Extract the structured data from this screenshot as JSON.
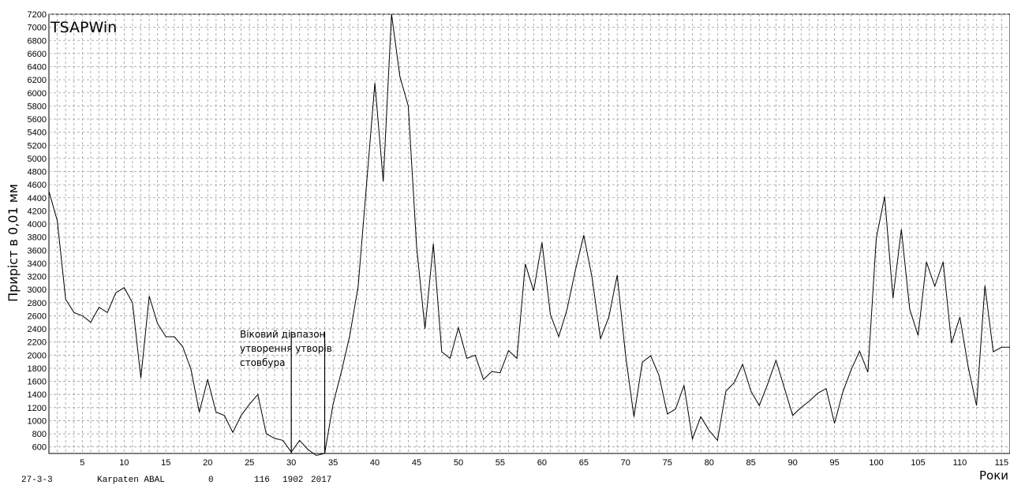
{
  "chart_data": {
    "type": "line",
    "title": "TSAPWin",
    "xlabel": "Роки",
    "ylabel": "Приріст в 0,01 мм",
    "xlim": [
      1,
      116
    ],
    "ylim": [
      500,
      7200
    ],
    "grid": true,
    "x_ticks": [
      5,
      10,
      15,
      20,
      25,
      30,
      35,
      40,
      45,
      50,
      55,
      60,
      65,
      70,
      75,
      80,
      85,
      90,
      95,
      100,
      105,
      110,
      115
    ],
    "y_ticks": [
      600,
      800,
      1000,
      1200,
      1400,
      1600,
      1800,
      2000,
      2200,
      2400,
      2600,
      2800,
      3000,
      3200,
      3400,
      3600,
      3800,
      4000,
      4200,
      4400,
      4600,
      4800,
      5000,
      5200,
      5400,
      5600,
      5800,
      6000,
      6200,
      6400,
      6600,
      6800,
      7000,
      7200
    ],
    "series": [
      {
        "x": [
          1,
          2,
          3,
          4,
          5,
          6,
          7,
          8,
          9,
          10,
          11,
          12,
          13,
          14,
          15,
          16,
          17,
          18,
          19,
          20,
          21,
          22,
          23,
          24,
          25,
          26,
          27,
          28,
          29,
          30,
          31,
          32,
          33,
          34,
          35,
          36,
          37,
          38,
          39,
          40,
          41,
          42,
          43,
          44,
          45,
          46,
          47,
          48,
          49,
          50,
          51,
          52,
          53,
          54,
          55,
          56,
          57,
          58,
          59,
          60,
          61,
          62,
          63,
          64,
          65,
          66,
          67,
          68,
          69,
          70,
          71,
          72,
          73,
          74,
          75,
          76,
          77,
          78,
          79,
          80,
          81,
          82,
          83,
          84,
          85,
          86,
          87,
          88,
          89,
          90,
          91,
          92,
          93,
          94,
          95,
          96,
          97,
          98,
          99,
          100,
          101,
          102,
          103,
          104,
          105,
          106,
          107,
          108,
          109,
          110,
          111,
          112,
          113,
          114,
          115,
          116
        ],
        "y": [
          4500,
          4050,
          2850,
          2650,
          2600,
          2500,
          2730,
          2650,
          2950,
          3030,
          2800,
          1650,
          2900,
          2480,
          2280,
          2280,
          2130,
          1780,
          1130,
          1630,
          1130,
          1080,
          820,
          1080,
          1250,
          1400,
          800,
          730,
          700,
          520,
          700,
          560,
          470,
          500,
          1250,
          1750,
          2300,
          3050,
          4600,
          6150,
          4650,
          7200,
          6250,
          5800,
          3650,
          2400,
          3700,
          2050,
          1950,
          2420,
          1950,
          2000,
          1630,
          1750,
          1730,
          2070,
          1950,
          3390,
          2980,
          3720,
          2620,
          2280,
          2700,
          3300,
          3830,
          3180,
          2250,
          2580,
          3220,
          2000,
          1060,
          1890,
          1990,
          1690,
          1100,
          1180,
          1540,
          720,
          1060,
          850,
          700,
          1450,
          1580,
          1860,
          1450,
          1230,
          1560,
          1920,
          1500,
          1080,
          1200,
          1300,
          1420,
          1490,
          960,
          1440,
          1780,
          2060,
          1740,
          3780,
          4420,
          2870,
          3920,
          2700,
          2300,
          3420,
          3050,
          3420,
          2180,
          2580,
          1820,
          1230,
          3060,
          2050,
          2120,
          2120
        ]
      }
    ],
    "annotation": {
      "text_lines": [
        "Віковий діапазон",
        "утворення утворів",
        "стовбура"
      ],
      "markers_x": [
        30,
        34
      ]
    }
  },
  "footer": {
    "sample_id": "27-3-3",
    "site": "Karpaten ABAL",
    "col1": "0",
    "length": "116",
    "start_year": "1902",
    "end_year": "2017"
  }
}
